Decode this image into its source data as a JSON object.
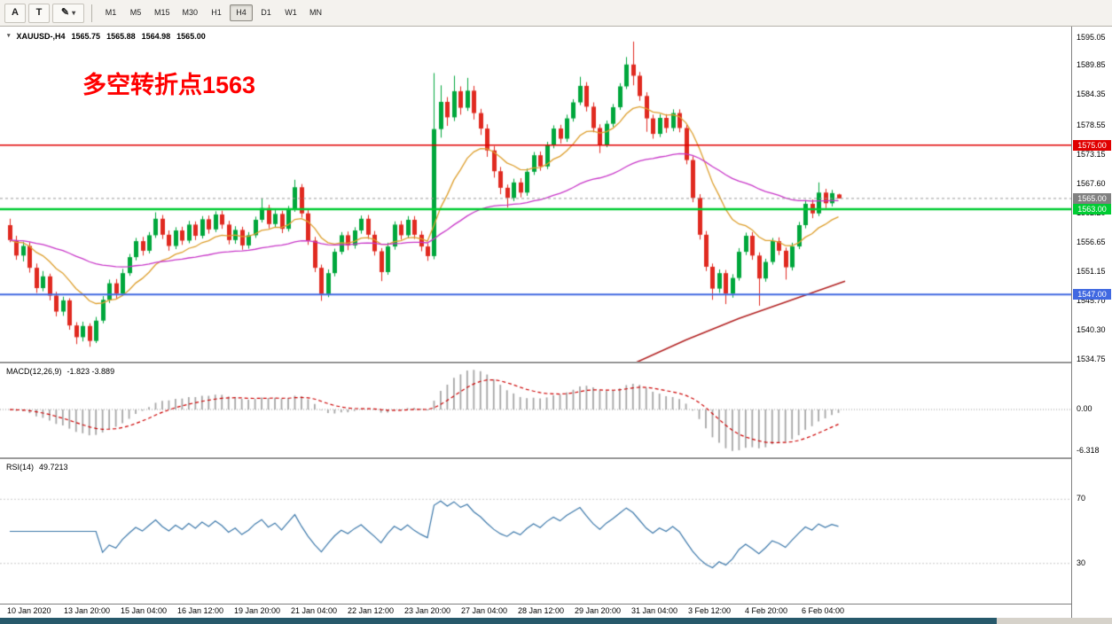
{
  "toolbar": {
    "tool_buttons": [
      {
        "id": "arrow",
        "label": "A"
      },
      {
        "id": "text",
        "label": "T"
      }
    ],
    "pencil_icon": "✎",
    "dropdown_caret": "▾",
    "timeframes": [
      "M1",
      "M5",
      "M15",
      "M30",
      "H1",
      "H4",
      "D1",
      "W1",
      "MN"
    ],
    "active_timeframe": "H4"
  },
  "chart": {
    "context_icon": "▾",
    "title": "XAUUSD-,H4",
    "ohlc": {
      "open": "1565.75",
      "high": "1565.88",
      "low": "1564.98",
      "close": "1565.00"
    },
    "annotation": {
      "text": "多空转折点1563",
      "color": "#ff0000"
    },
    "hlines": [
      {
        "name": "resistance",
        "value": 1575.0,
        "label": "1575.00",
        "color": "#e00000",
        "width": 1.5
      },
      {
        "name": "pivot",
        "value": 1563.0,
        "label": "1563.00",
        "color": "#00cc33",
        "width": 2.5
      },
      {
        "name": "support",
        "value": 1547.0,
        "label": "1547.00",
        "color": "#4169e1",
        "width": 2
      }
    ],
    "current_price": {
      "value": 1565.0,
      "label": "1565.00",
      "color": "#808080"
    }
  },
  "macd": {
    "label": "MACD(12,26,9)",
    "values": "-1.823 -3.889",
    "axis_labels": {
      "zero": "0.00",
      "min": "-6.318"
    },
    "fast": 12,
    "slow": 26,
    "smoothing": 9
  },
  "rsi": {
    "label": "RSI(14)",
    "value": "49.7213",
    "period": 14,
    "levels": [
      "70",
      "30"
    ]
  },
  "chart_data": {
    "type": "candlestick",
    "symbol": "XAUUSD-",
    "timeframe": "H4",
    "y_range": [
      1534.75,
      1595.05
    ],
    "y_tick_labels": [
      "1595.05",
      "1589.85",
      "1584.35",
      "1578.55",
      "1573.15",
      "1567.60",
      "1562.20",
      "1556.65",
      "1551.15",
      "1545.70",
      "1540.30",
      "1534.75"
    ],
    "time_labels": [
      "10 Jan 2020",
      "13 Jan 20:00",
      "15 Jan 04:00",
      "16 Jan 12:00",
      "19 Jan 20:00",
      "21 Jan 04:00",
      "22 Jan 12:00",
      "23 Jan 20:00",
      "27 Jan 04:00",
      "28 Jan 12:00",
      "29 Jan 20:00",
      "31 Jan 04:00",
      "3 Feb 12:00",
      "4 Feb 20:00",
      "6 Feb 04:00"
    ],
    "colors": {
      "bull": "#00a73c",
      "bear": "#e02a20",
      "ma_fast": "#dd9f2e",
      "ma_slow": "#c837c8",
      "ma_long": "#b22222",
      "rsi": "#3c78aa",
      "macd_hist": "#a6a6a6",
      "macd_signal": "#cc0000"
    },
    "ma_long_points": [
      [
        86,
        1529
      ],
      [
        94,
        1534
      ],
      [
        102,
        1538.5
      ],
      [
        110,
        1542.5
      ],
      [
        118,
        1546
      ],
      [
        126,
        1549.5
      ]
    ],
    "candles": [
      [
        1560.0,
        1561.2,
        1556.8,
        1557.2
      ],
      [
        1557.2,
        1558.0,
        1553.5,
        1554.3
      ],
      [
        1554.3,
        1556.9,
        1553.2,
        1556.1
      ],
      [
        1556.1,
        1556.8,
        1551.1,
        1552.0
      ],
      [
        1552.0,
        1552.8,
        1547.3,
        1548.2
      ],
      [
        1548.2,
        1551.4,
        1547.6,
        1550.4
      ],
      [
        1550.4,
        1550.9,
        1545.9,
        1546.8
      ],
      [
        1546.8,
        1547.5,
        1542.9,
        1543.8
      ],
      [
        1543.8,
        1546.6,
        1543.0,
        1545.9
      ],
      [
        1545.9,
        1546.3,
        1540.4,
        1541.2
      ],
      [
        1541.2,
        1541.8,
        1537.7,
        1539.0
      ],
      [
        1539.0,
        1541.9,
        1538.2,
        1541.1
      ],
      [
        1541.1,
        1541.6,
        1537.2,
        1538.3
      ],
      [
        1538.3,
        1542.8,
        1537.9,
        1542.1
      ],
      [
        1542.1,
        1546.7,
        1541.6,
        1546.0
      ],
      [
        1546.0,
        1549.8,
        1545.4,
        1549.1
      ],
      [
        1549.1,
        1549.9,
        1546.2,
        1547.2
      ],
      [
        1547.2,
        1551.8,
        1546.8,
        1551.0
      ],
      [
        1551.0,
        1554.6,
        1550.5,
        1554.0
      ],
      [
        1554.0,
        1557.6,
        1553.4,
        1557.0
      ],
      [
        1557.0,
        1557.8,
        1554.3,
        1555.2
      ],
      [
        1555.2,
        1558.7,
        1554.7,
        1558.1
      ],
      [
        1558.1,
        1562.4,
        1557.6,
        1561.2
      ],
      [
        1561.2,
        1561.9,
        1557.4,
        1558.2
      ],
      [
        1558.2,
        1559.0,
        1555.2,
        1556.1
      ],
      [
        1556.1,
        1559.6,
        1555.5,
        1559.0
      ],
      [
        1559.0,
        1559.7,
        1556.3,
        1557.1
      ],
      [
        1557.1,
        1560.8,
        1556.6,
        1560.1
      ],
      [
        1560.1,
        1560.7,
        1557.2,
        1558.0
      ],
      [
        1558.0,
        1561.7,
        1557.5,
        1561.1
      ],
      [
        1561.1,
        1561.8,
        1558.4,
        1559.2
      ],
      [
        1559.2,
        1562.6,
        1558.7,
        1562.0
      ],
      [
        1562.0,
        1562.7,
        1559.3,
        1560.1
      ],
      [
        1560.1,
        1560.8,
        1556.4,
        1557.2
      ],
      [
        1557.2,
        1559.8,
        1556.5,
        1559.1
      ],
      [
        1559.1,
        1559.7,
        1555.4,
        1556.2
      ],
      [
        1556.2,
        1558.7,
        1555.6,
        1558.1
      ],
      [
        1558.1,
        1561.6,
        1557.6,
        1561.0
      ],
      [
        1561.0,
        1565.0,
        1560.5,
        1563.2
      ],
      [
        1563.2,
        1563.8,
        1559.4,
        1560.2
      ],
      [
        1560.2,
        1562.8,
        1559.6,
        1562.1
      ],
      [
        1562.1,
        1562.7,
        1558.5,
        1559.3
      ],
      [
        1559.3,
        1563.6,
        1558.8,
        1563.0
      ],
      [
        1563.0,
        1568.5,
        1562.5,
        1567.1
      ],
      [
        1567.1,
        1567.7,
        1561.4,
        1562.2
      ],
      [
        1562.2,
        1562.9,
        1556.3,
        1557.1
      ],
      [
        1557.1,
        1557.8,
        1551.2,
        1552.0
      ],
      [
        1552.0,
        1552.6,
        1545.8,
        1547.1
      ],
      [
        1547.1,
        1551.7,
        1546.5,
        1551.0
      ],
      [
        1551.0,
        1555.6,
        1550.4,
        1555.0
      ],
      [
        1555.0,
        1558.7,
        1554.5,
        1558.1
      ],
      [
        1558.1,
        1558.8,
        1555.3,
        1556.2
      ],
      [
        1556.2,
        1559.6,
        1555.6,
        1559.0
      ],
      [
        1559.0,
        1561.8,
        1558.4,
        1561.2
      ],
      [
        1561.2,
        1561.9,
        1557.4,
        1558.2
      ],
      [
        1558.2,
        1558.9,
        1554.3,
        1555.1
      ],
      [
        1555.1,
        1555.7,
        1549.5,
        1551.2
      ],
      [
        1551.2,
        1556.7,
        1550.7,
        1556.0
      ],
      [
        1556.0,
        1560.7,
        1555.4,
        1560.1
      ],
      [
        1560.1,
        1560.8,
        1557.3,
        1558.1
      ],
      [
        1558.1,
        1561.7,
        1557.6,
        1561.0
      ],
      [
        1561.0,
        1561.7,
        1557.4,
        1558.2
      ],
      [
        1558.2,
        1558.9,
        1555.1,
        1556.0
      ],
      [
        1556.0,
        1556.6,
        1553.3,
        1554.2
      ],
      [
        1554.2,
        1588.5,
        1553.6,
        1578.0
      ],
      [
        1578.0,
        1586.2,
        1576.4,
        1583.1
      ],
      [
        1583.1,
        1584.0,
        1578.6,
        1580.2
      ],
      [
        1580.2,
        1588.0,
        1579.5,
        1585.1
      ],
      [
        1585.1,
        1586.0,
        1580.7,
        1582.0
      ],
      [
        1582.0,
        1587.6,
        1581.4,
        1585.2
      ],
      [
        1585.2,
        1586.1,
        1579.8,
        1581.0
      ],
      [
        1581.0,
        1581.8,
        1576.9,
        1578.1
      ],
      [
        1578.1,
        1578.9,
        1572.8,
        1574.0
      ],
      [
        1574.0,
        1574.8,
        1568.9,
        1570.1
      ],
      [
        1570.1,
        1570.9,
        1565.8,
        1567.0
      ],
      [
        1567.0,
        1567.6,
        1563.3,
        1565.1
      ],
      [
        1565.1,
        1568.7,
        1564.5,
        1568.0
      ],
      [
        1568.0,
        1568.8,
        1565.2,
        1566.1
      ],
      [
        1566.1,
        1570.6,
        1565.5,
        1570.0
      ],
      [
        1570.0,
        1573.7,
        1569.4,
        1573.1
      ],
      [
        1573.1,
        1573.8,
        1570.2,
        1571.0
      ],
      [
        1571.0,
        1575.6,
        1570.5,
        1575.0
      ],
      [
        1575.0,
        1578.7,
        1574.4,
        1578.1
      ],
      [
        1578.1,
        1578.8,
        1575.3,
        1576.2
      ],
      [
        1576.2,
        1580.7,
        1575.6,
        1580.0
      ],
      [
        1580.0,
        1583.6,
        1579.4,
        1583.0
      ],
      [
        1583.0,
        1587.8,
        1582.5,
        1586.1
      ],
      [
        1586.1,
        1586.8,
        1581.3,
        1582.2
      ],
      [
        1582.2,
        1583.0,
        1577.4,
        1578.2
      ],
      [
        1578.2,
        1578.9,
        1573.5,
        1575.1
      ],
      [
        1575.1,
        1579.6,
        1574.6,
        1579.0
      ],
      [
        1579.0,
        1582.7,
        1578.4,
        1582.1
      ],
      [
        1582.1,
        1586.6,
        1581.6,
        1586.0
      ],
      [
        1586.0,
        1591.5,
        1585.5,
        1590.1
      ],
      [
        1590.1,
        1594.4,
        1586.2,
        1588.0
      ],
      [
        1588.0,
        1588.7,
        1583.3,
        1584.2
      ],
      [
        1584.2,
        1584.9,
        1577.5,
        1580.0
      ],
      [
        1580.0,
        1580.7,
        1576.2,
        1577.1
      ],
      [
        1577.1,
        1580.8,
        1576.5,
        1580.1
      ],
      [
        1580.1,
        1580.8,
        1577.3,
        1578.2
      ],
      [
        1578.2,
        1581.7,
        1577.6,
        1581.0
      ],
      [
        1581.0,
        1581.7,
        1577.4,
        1578.2
      ],
      [
        1578.2,
        1578.8,
        1571.4,
        1572.2
      ],
      [
        1572.2,
        1572.9,
        1564.3,
        1565.1
      ],
      [
        1565.1,
        1565.8,
        1557.3,
        1558.2
      ],
      [
        1558.2,
        1558.9,
        1551.4,
        1552.2
      ],
      [
        1552.2,
        1552.8,
        1546.0,
        1548.1
      ],
      [
        1548.1,
        1551.7,
        1547.3,
        1551.0
      ],
      [
        1551.0,
        1551.6,
        1545.2,
        1547.2
      ],
      [
        1547.2,
        1550.8,
        1546.4,
        1550.1
      ],
      [
        1550.1,
        1555.7,
        1549.6,
        1555.0
      ],
      [
        1555.0,
        1558.6,
        1554.4,
        1558.0
      ],
      [
        1558.0,
        1558.7,
        1553.5,
        1554.3
      ],
      [
        1554.3,
        1554.9,
        1544.9,
        1550.0
      ],
      [
        1550.0,
        1553.7,
        1549.4,
        1553.1
      ],
      [
        1553.1,
        1557.6,
        1552.6,
        1557.0
      ],
      [
        1557.0,
        1557.7,
        1554.4,
        1555.2
      ],
      [
        1555.2,
        1555.8,
        1549.8,
        1552.1
      ],
      [
        1552.1,
        1556.7,
        1551.5,
        1556.0
      ],
      [
        1556.0,
        1560.6,
        1555.5,
        1560.0
      ],
      [
        1560.0,
        1564.7,
        1559.4,
        1564.0
      ],
      [
        1564.0,
        1564.8,
        1561.3,
        1562.2
      ],
      [
        1562.2,
        1568.0,
        1561.7,
        1566.1
      ],
      [
        1566.1,
        1566.8,
        1563.2,
        1564.1
      ],
      [
        1564.1,
        1566.6,
        1563.5,
        1566.0
      ],
      [
        1565.75,
        1565.88,
        1564.98,
        1565.0
      ]
    ]
  }
}
